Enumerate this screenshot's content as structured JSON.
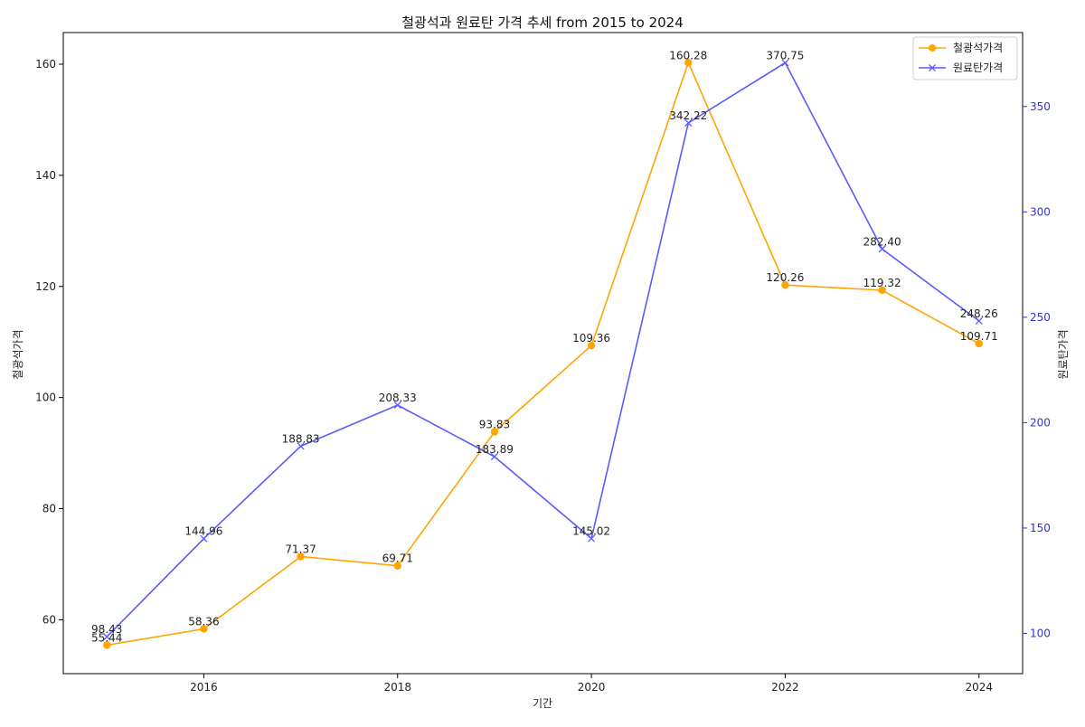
{
  "chart_data": {
    "type": "line",
    "title": "철광석과 원료탄 가격 추세 from 2015 to 2024",
    "xlabel": "기간",
    "ylabel_left": "철광석가격",
    "ylabel_right": "원료탄가격",
    "x": [
      2015,
      2016,
      2017,
      2018,
      2019,
      2020,
      2021,
      2022,
      2023,
      2024
    ],
    "x_ticks": [
      "2016",
      "2018",
      "2020",
      "2022",
      "2024"
    ],
    "x_tick_values": [
      2016,
      2018,
      2020,
      2022,
      2024
    ],
    "xlim": [
      2014.55,
      2024.45
    ],
    "ylim_left": [
      50.3,
      165.7
    ],
    "ylim_right": [
      80.9,
      385.1
    ],
    "y_ticks_left": [
      "60",
      "80",
      "100",
      "120",
      "140",
      "160"
    ],
    "y_tick_values_left": [
      60,
      80,
      100,
      120,
      140,
      160
    ],
    "y_ticks_right": [
      "100",
      "150",
      "200",
      "250",
      "300",
      "350"
    ],
    "y_tick_values_right": [
      100,
      150,
      200,
      250,
      300,
      350
    ],
    "series": [
      {
        "name": "철광석가격",
        "axis": "left",
        "color": "#ffa500",
        "marker": "circle",
        "values": [
          55.44,
          58.36,
          71.37,
          69.71,
          93.83,
          109.36,
          160.28,
          120.26,
          119.32,
          109.71
        ],
        "labels": [
          "55.44",
          "58.36",
          "71.37",
          "69.71",
          "93.83",
          "109.36",
          "160.28",
          "120.26",
          "119.32",
          "109.71"
        ]
      },
      {
        "name": "원료탄가격",
        "axis": "right",
        "color": "#5a5aff",
        "marker": "x",
        "values": [
          98.43,
          144.96,
          188.83,
          208.33,
          183.89,
          145.02,
          342.22,
          370.75,
          282.4,
          248.26
        ],
        "labels": [
          "98.43",
          "144.96",
          "188.83",
          "208.33",
          "183.89",
          "145.02",
          "342.22",
          "370.75",
          "282.40",
          "248.26"
        ]
      }
    ],
    "legend_position": "top-right",
    "grid": false,
    "right_axis_color": "#3333cc"
  }
}
